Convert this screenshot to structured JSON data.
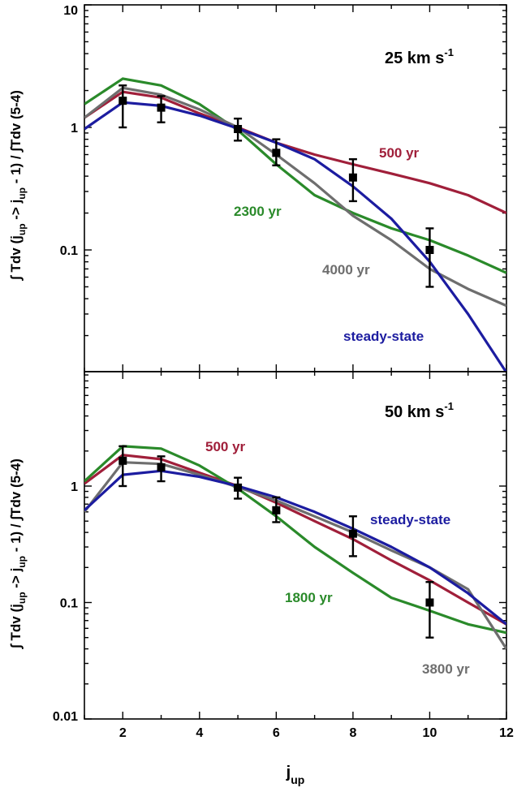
{
  "colors": {
    "500 yr": "#a01f3a",
    "2300 yr": "#2a8a2a",
    "1800 yr": "#2a8a2a",
    "4000 yr": "#6e6e6e",
    "3800 yr": "#6e6e6e",
    "steady-state": "#1c1ca0",
    "data": "#000000"
  },
  "chart_data": [
    {
      "type": "line",
      "panel": "top",
      "annotation": "25 km s",
      "annotation_sup": "-1",
      "ylabel": "∫ Tdv (j → j - 1) / ∫Tdv (5-4)",
      "ylabel_parts": [
        "∫ Tdv (j",
        "up",
        " -> j",
        "up",
        " - 1) / ∫Tdv (5-4)"
      ],
      "xlim": [
        1,
        12
      ],
      "ylim": [
        0.01,
        10
      ],
      "yscale": "log",
      "yticks": [
        0.1,
        1,
        10
      ],
      "ytick_labels": [
        "0.1",
        "1",
        "10"
      ],
      "series": [
        {
          "name": "500 yr",
          "x": [
            1,
            2,
            3,
            4,
            5,
            6,
            7,
            8,
            9,
            10,
            11,
            12
          ],
          "y": [
            1.2,
            1.95,
            1.75,
            1.3,
            1.0,
            0.75,
            0.6,
            0.5,
            0.42,
            0.35,
            0.28,
            0.2
          ]
        },
        {
          "name": "2300 yr",
          "x": [
            1,
            2,
            3,
            4,
            5,
            6,
            7,
            8,
            9,
            10,
            11,
            12
          ],
          "y": [
            1.55,
            2.5,
            2.2,
            1.55,
            0.95,
            0.5,
            0.28,
            0.2,
            0.15,
            0.12,
            0.09,
            0.065
          ]
        },
        {
          "name": "4000 yr",
          "x": [
            1,
            2,
            3,
            4,
            5,
            6,
            7,
            8,
            9,
            10,
            11,
            12
          ],
          "y": [
            1.2,
            2.1,
            1.85,
            1.4,
            1.0,
            0.6,
            0.35,
            0.19,
            0.12,
            0.07,
            0.048,
            0.035
          ]
        },
        {
          "name": "steady-state",
          "x": [
            1,
            2,
            3,
            4,
            5,
            6,
            7,
            8,
            9,
            10,
            11,
            12
          ],
          "y": [
            0.97,
            1.6,
            1.5,
            1.25,
            0.98,
            0.75,
            0.55,
            0.33,
            0.18,
            0.08,
            0.03,
            0.01
          ]
        }
      ],
      "observations": {
        "x": [
          2,
          3,
          5,
          6,
          8,
          10
        ],
        "y": [
          1.65,
          1.45,
          0.97,
          0.62,
          0.39,
          0.1
        ],
        "yerr_low": [
          1.0,
          1.1,
          0.78,
          0.49,
          0.25,
          0.05
        ],
        "yerr_high": [
          2.2,
          1.8,
          1.18,
          0.8,
          0.55,
          0.15
        ]
      },
      "series_labels": [
        "500 yr",
        "2300 yr",
        "4000 yr",
        "steady-state"
      ]
    },
    {
      "type": "line",
      "panel": "bottom",
      "annotation": "50 km s",
      "annotation_sup": "-1",
      "ylabel": "∫ Tdv (j → j - 1) / ∫Tdv (5-4)",
      "ylabel_parts": [
        "∫ Tdv (j",
        "up",
        " -> j",
        "up",
        " - 1) / ∫Tdv (5-4)"
      ],
      "xlabel": "j",
      "xlabel_sub": "up",
      "xlim": [
        1,
        12
      ],
      "ylim": [
        0.01,
        10
      ],
      "yscale": "log",
      "yticks": [
        0.01,
        0.1,
        1
      ],
      "ytick_labels": [
        "0.01",
        "0.1",
        "1"
      ],
      "xticks": [
        2,
        4,
        6,
        8,
        10,
        12
      ],
      "xtick_labels": [
        "2",
        "4",
        "6",
        "8",
        "10",
        "12"
      ],
      "series": [
        {
          "name": "500 yr",
          "x": [
            1,
            2,
            3,
            4,
            5,
            6,
            7,
            8,
            9,
            10,
            11,
            12
          ],
          "y": [
            1.05,
            1.85,
            1.7,
            1.3,
            1.0,
            0.72,
            0.5,
            0.35,
            0.23,
            0.155,
            0.1,
            0.065
          ]
        },
        {
          "name": "1800 yr",
          "x": [
            1,
            2,
            3,
            4,
            5,
            6,
            7,
            8,
            9,
            10,
            11,
            12
          ],
          "y": [
            1.1,
            2.2,
            2.1,
            1.5,
            0.95,
            0.55,
            0.3,
            0.18,
            0.11,
            0.085,
            0.065,
            0.055
          ]
        },
        {
          "name": "3800 yr",
          "x": [
            1,
            2,
            3,
            4,
            5,
            6,
            7,
            8,
            9,
            10,
            11,
            12
          ],
          "y": [
            0.6,
            1.6,
            1.55,
            1.25,
            0.98,
            0.75,
            0.55,
            0.4,
            0.28,
            0.2,
            0.13,
            0.04
          ]
        },
        {
          "name": "steady-state",
          "x": [
            1,
            2,
            3,
            4,
            5,
            6,
            7,
            8,
            9,
            10,
            11,
            12
          ],
          "y": [
            0.62,
            1.25,
            1.35,
            1.2,
            1.0,
            0.8,
            0.6,
            0.43,
            0.3,
            0.2,
            0.12,
            0.065
          ]
        }
      ],
      "observations": {
        "x": [
          2,
          3,
          5,
          6,
          8,
          10
        ],
        "y": [
          1.65,
          1.45,
          0.97,
          0.62,
          0.39,
          0.1
        ],
        "yerr_low": [
          1.0,
          1.1,
          0.78,
          0.49,
          0.25,
          0.05
        ],
        "yerr_high": [
          2.2,
          1.8,
          1.18,
          0.8,
          0.55,
          0.15
        ]
      },
      "series_labels": [
        "500 yr",
        "steady-state",
        "1800 yr",
        "3800 yr"
      ]
    }
  ]
}
